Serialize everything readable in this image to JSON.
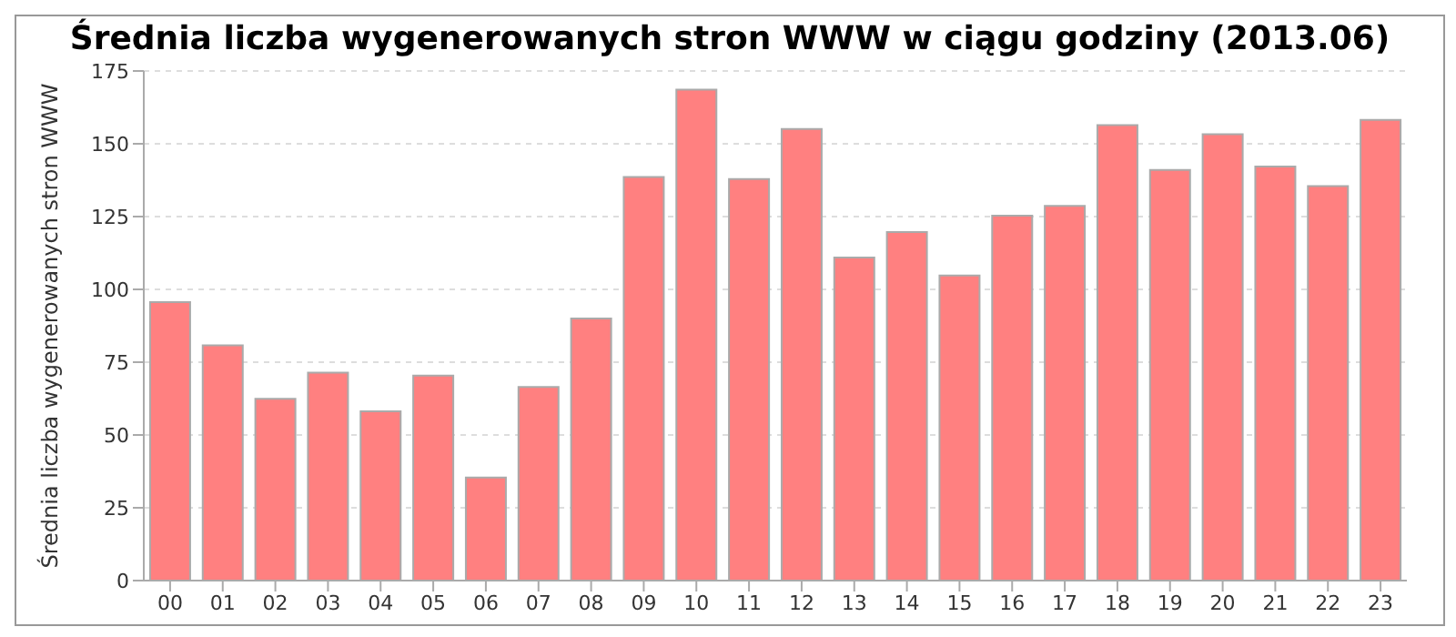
{
  "chart_data": {
    "type": "bar",
    "title": "Średnia liczba wygenerowanych stron WWW w ciągu godziny (2013.06)",
    "ylabel": "Średnia liczba wygenerowanych stron WWW",
    "categories": [
      "00",
      "01",
      "02",
      "03",
      "04",
      "05",
      "06",
      "07",
      "08",
      "09",
      "10",
      "11",
      "12",
      "13",
      "14",
      "15",
      "16",
      "17",
      "18",
      "19",
      "20",
      "21",
      "22",
      "23"
    ],
    "values": [
      95.6,
      80.8,
      62.4,
      71.4,
      58.1,
      70.4,
      35.4,
      66.5,
      90,
      138.6,
      168.6,
      137.9,
      155.1,
      110.9,
      119.7,
      104.8,
      125.3,
      128.7,
      156.4,
      141,
      153.3,
      142.2,
      135.5,
      158.2
    ],
    "color": "#ff8080",
    "ylim": [
      0,
      175
    ],
    "yticks": [
      0,
      25,
      50,
      75,
      100,
      125,
      150,
      175
    ],
    "grid": "y"
  }
}
